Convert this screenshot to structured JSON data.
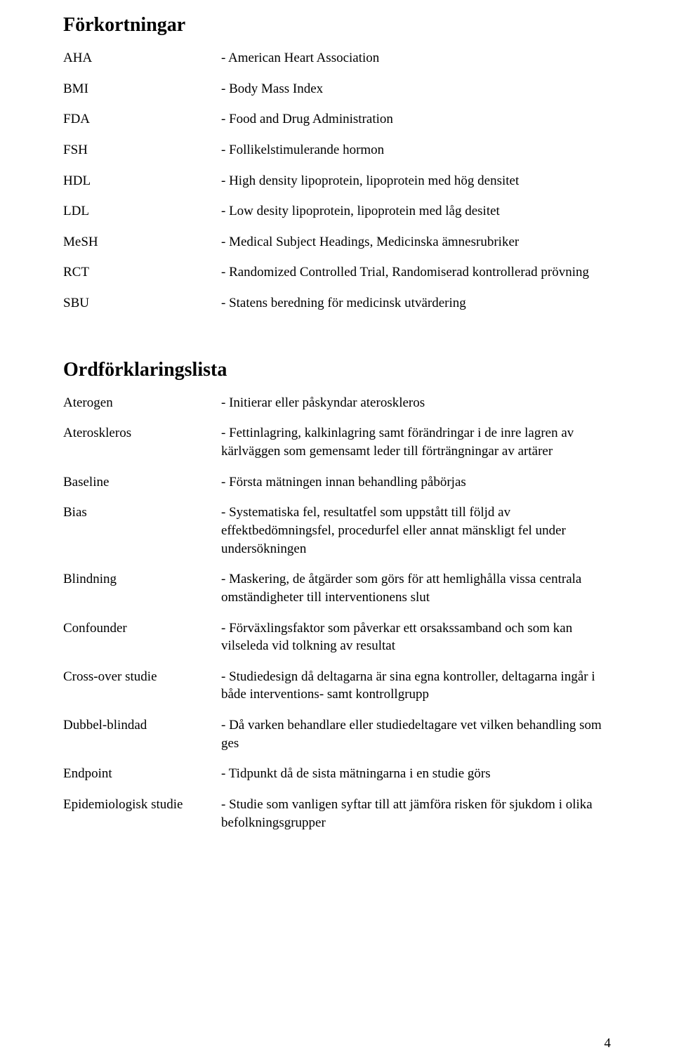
{
  "page_number": "4",
  "section1": {
    "heading": "Förkortningar",
    "entries": [
      {
        "term": "AHA",
        "desc": "- American Heart Association"
      },
      {
        "term": "BMI",
        "desc": "- Body Mass Index"
      },
      {
        "term": "FDA",
        "desc": "- Food and Drug Administration"
      },
      {
        "term": "FSH",
        "desc": "- Follikelstimulerande hormon"
      },
      {
        "term": "HDL",
        "desc": "- High density lipoprotein, lipoprotein med hög densitet"
      },
      {
        "term": "LDL",
        "desc": "- Low desity lipoprotein, lipoprotein med låg desitet"
      },
      {
        "term": "MeSH",
        "desc": "- Medical Subject Headings, Medicinska ämnesrubriker"
      },
      {
        "term": "RCT",
        "desc": "- Randomized Controlled Trial, Randomiserad kontrollerad prövning"
      },
      {
        "term": "SBU",
        "desc": "- Statens beredning för medicinsk utvärdering"
      }
    ]
  },
  "section2": {
    "heading": "Ordförklaringslista",
    "entries": [
      {
        "term": "Aterogen",
        "desc": "- Initierar eller påskyndar ateroskleros"
      },
      {
        "term": "Ateroskleros",
        "desc": "- Fettinlagring, kalkinlagring samt förändringar i de inre lagren av kärlväggen som gemensamt leder till förträngningar av artärer"
      },
      {
        "term": "Baseline",
        "desc": "- Första mätningen innan behandling påbörjas"
      },
      {
        "term": "Bias",
        "desc": "- Systematiska fel, resultatfel som uppstått till följd av effektbedömningsfel, procedurfel eller annat mänskligt fel under undersökningen"
      },
      {
        "term": "Blindning",
        "desc": "- Maskering, de åtgärder som görs för att hemlighålla vissa centrala omständigheter till interventionens slut"
      },
      {
        "term": "Confounder",
        "desc": "- Förväxlingsfaktor som påverkar ett orsakssamband och som kan vilseleda vid tolkning av resultat"
      },
      {
        "term": "Cross-over studie",
        "desc": "- Studiedesign då deltagarna är sina egna kontroller, deltagarna ingår i både interventions- samt kontrollgrupp"
      },
      {
        "term": "Dubbel-blindad",
        "desc": "- Då varken behandlare eller studiedeltagare vet vilken behandling som ges"
      },
      {
        "term": "Endpoint",
        "desc": "- Tidpunkt då de sista mätningarna i en studie görs"
      },
      {
        "term": "Epidemiologisk studie",
        "desc": "- Studie som vanligen syftar till att jämföra risken för sjukdom i olika befolkningsgrupper"
      }
    ]
  }
}
